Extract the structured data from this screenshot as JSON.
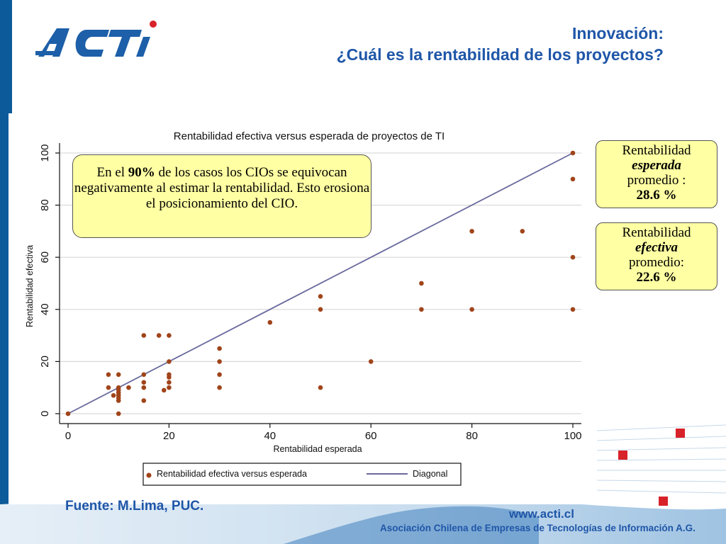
{
  "header": {
    "brand": "ACTI",
    "title_line1": "Innovación:",
    "title_line2": "¿Cuál es la rentabilidad de los proyectos?"
  },
  "callout": {
    "pre": "En el ",
    "highlight": "90%",
    "post": " de los casos los CIOs se equivocan negativamente al estimar la rentabilidad. Esto erosiona el posicionamiento del CIO."
  },
  "stats": {
    "expected": {
      "line1": "Rentabilidad",
      "line2": "esperada",
      "line3": "promedio :",
      "value": "28.6 %"
    },
    "effective": {
      "line1": "Rentabilidad",
      "line2": "efectiva",
      "line3": "promedio:",
      "value": "22.6 %"
    }
  },
  "footer": {
    "source": "Fuente: M.Lima, PUC.",
    "url": "www.acti.cl",
    "org": "Asociación Chilena de Empresas de Tecnologías de Información A.G."
  },
  "chart_data": {
    "type": "scatter",
    "title": "Rentabilidad efectiva versus esperada de proyectos de TI",
    "xlabel": "Rentabilidad esperada",
    "ylabel": "Rentabilidad efectiva",
    "xlim": [
      0,
      100
    ],
    "ylim": [
      0,
      100
    ],
    "xticks": [
      0,
      20,
      40,
      60,
      80,
      100
    ],
    "yticks": [
      0,
      20,
      40,
      60,
      80,
      100
    ],
    "grid": "horizontal",
    "legend_position": "bottom",
    "series": [
      {
        "name": "Rentabilidad efectiva versus esperada",
        "kind": "points",
        "color": "#a0441a",
        "points": [
          [
            0,
            0
          ],
          [
            8,
            15
          ],
          [
            8,
            10
          ],
          [
            9,
            7
          ],
          [
            10,
            15
          ],
          [
            10,
            10
          ],
          [
            10,
            9
          ],
          [
            10,
            8
          ],
          [
            10,
            7
          ],
          [
            10,
            6
          ],
          [
            10,
            5
          ],
          [
            10,
            0
          ],
          [
            12,
            10
          ],
          [
            15,
            30
          ],
          [
            15,
            15
          ],
          [
            15,
            12
          ],
          [
            15,
            10
          ],
          [
            15,
            5
          ],
          [
            18,
            30
          ],
          [
            19,
            9
          ],
          [
            20,
            30
          ],
          [
            20,
            20
          ],
          [
            20,
            15
          ],
          [
            20,
            14
          ],
          [
            20,
            12
          ],
          [
            20,
            10
          ],
          [
            30,
            25
          ],
          [
            30,
            20
          ],
          [
            30,
            15
          ],
          [
            30,
            10
          ],
          [
            40,
            35
          ],
          [
            50,
            45
          ],
          [
            50,
            40
          ],
          [
            50,
            10
          ],
          [
            60,
            20
          ],
          [
            70,
            50
          ],
          [
            70,
            40
          ],
          [
            80,
            70
          ],
          [
            80,
            40
          ],
          [
            90,
            70
          ],
          [
            100,
            100
          ],
          [
            100,
            90
          ],
          [
            100,
            60
          ],
          [
            100,
            40
          ]
        ]
      },
      {
        "name": "Diagonal",
        "kind": "line",
        "color": "#6a6a9e",
        "points": [
          [
            0,
            0
          ],
          [
            100,
            100
          ]
        ]
      }
    ]
  }
}
